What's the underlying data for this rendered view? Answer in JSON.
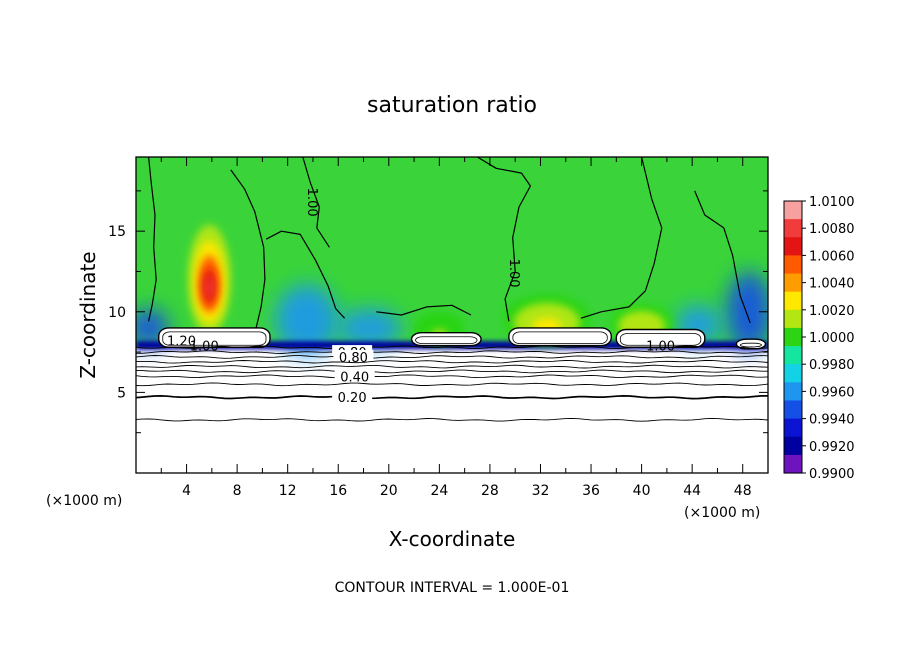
{
  "chart_data": {
    "type": "heatmap",
    "title": "saturation ratio",
    "xlabel": "X-coordinate",
    "ylabel": "Z-coordinate",
    "x_unit_left": "(×1000 m)",
    "x_unit_right": "(×1000 m)",
    "xlim": [
      0,
      50
    ],
    "ylim": [
      0,
      19.6
    ],
    "x_ticks": [
      4,
      8,
      12,
      16,
      20,
      24,
      28,
      32,
      36,
      40,
      44,
      48
    ],
    "x_tick_labels": [
      "4",
      "8",
      "12",
      "16",
      "20",
      "24",
      "28",
      "32",
      "36",
      "40",
      "44",
      "48"
    ],
    "y_ticks": [
      5,
      10,
      15
    ],
    "y_tick_labels": [
      "5",
      "10",
      "15"
    ],
    "footer": "CONTOUR INTERVAL = 1.000E-01",
    "colorbar": {
      "labels": [
        "1.0100",
        "1.0080",
        "1.0060",
        "1.0040",
        "1.0020",
        "1.0000",
        "0.9980",
        "0.9960",
        "0.9940",
        "0.9920",
        "0.9900"
      ],
      "colors": [
        "#f7a0a0",
        "#f23c3c",
        "#e41414",
        "#ff5a00",
        "#ff9c00",
        "#ffe800",
        "#b4e614",
        "#2cd414",
        "#14e6a0",
        "#14d2e6",
        "#1e96f0",
        "#1450e6",
        "#0a14d2",
        "#0000a0",
        "#6e14be"
      ],
      "min": 0.99,
      "max": 1.01
    },
    "background_color": "#3ad43a",
    "hot_spots": [
      {
        "x": 5.8,
        "z": 12.0,
        "sx": 1.7,
        "sz": 3.4,
        "value": 1.009
      },
      {
        "x": 32.5,
        "z": 9.5,
        "sx": 3.5,
        "sz": 1.6,
        "value": 1.003
      },
      {
        "x": 40.0,
        "z": 9.3,
        "sx": 2.5,
        "sz": 1.2,
        "value": 1.002
      },
      {
        "x": 24.0,
        "z": 9.0,
        "sx": 2.0,
        "sz": 1.0,
        "value": 1.001
      }
    ],
    "cold_spots": [
      {
        "x": 13.5,
        "z": 9.5,
        "sx": 2.5,
        "sz": 2.2,
        "value": 0.9955
      },
      {
        "x": 18.5,
        "z": 9.0,
        "sx": 2.5,
        "sz": 1.2,
        "value": 0.9965
      },
      {
        "x": 1.0,
        "z": 9.0,
        "sx": 1.6,
        "sz": 1.2,
        "value": 0.995
      },
      {
        "x": 48.5,
        "z": 10.0,
        "sx": 1.8,
        "sz": 2.5,
        "value": 0.995
      },
      {
        "x": 44.5,
        "z": 9.2,
        "sx": 1.8,
        "sz": 1.2,
        "value": 0.996
      }
    ],
    "blue_band": {
      "z": 7.8,
      "value": 0.9925
    },
    "cloud_caps": [
      {
        "x0": 1.8,
        "x1": 10.6,
        "z0": 7.8,
        "z1": 9.0,
        "label": "1.20",
        "label_x": 3.6,
        "label_z": 7.9
      },
      {
        "x0": 21.8,
        "x1": 27.3,
        "z0": 7.9,
        "z1": 8.7,
        "label": "",
        "label_x": 0,
        "label_z": 0
      },
      {
        "x0": 29.5,
        "x1": 37.6,
        "z0": 7.9,
        "z1": 9.0,
        "label": "",
        "label_x": 0,
        "label_z": 0
      },
      {
        "x0": 38.0,
        "x1": 45.0,
        "z0": 7.8,
        "z1": 8.9,
        "label": "",
        "label_x": 0,
        "label_z": 0
      },
      {
        "x0": 47.5,
        "x1": 49.8,
        "z0": 7.7,
        "z1": 8.3,
        "label": "",
        "label_x": 0,
        "label_z": 0
      }
    ],
    "contours": [
      {
        "z": 7.8,
        "label": "",
        "label_x": 0
      },
      {
        "z": 7.5,
        "label": "0.80",
        "label_x": 17.1
      },
      {
        "z": 7.2,
        "label": "0.80",
        "label_x": 17.2
      },
      {
        "z": 6.9,
        "label": "",
        "label_x": 0
      },
      {
        "z": 6.6,
        "label": "",
        "label_x": 0
      },
      {
        "z": 6.3,
        "label": "",
        "label_x": 0
      },
      {
        "z": 6.0,
        "label": "0.40",
        "label_x": 17.3
      },
      {
        "z": 5.5,
        "label": "",
        "label_x": 0
      },
      {
        "z": 4.7,
        "label": "0.20",
        "label_x": 17.1
      },
      {
        "z": 3.3,
        "label": "",
        "label_x": 0
      }
    ],
    "surface_contour_labels": [
      {
        "label": "1.00",
        "x": 5.4,
        "z": 7.6
      },
      {
        "label": "1.00",
        "x": 41.5,
        "z": 7.6
      },
      {
        "label": "1.00",
        "x": 29.6,
        "z": 12.4,
        "rotate": 90
      },
      {
        "label": "1.00",
        "x": 13.6,
        "z": 16.8,
        "rotate": 90
      }
    ],
    "one_contours": [
      [
        [
          1.0,
          19.6
        ],
        [
          1.2,
          18.0
        ],
        [
          1.5,
          16.0
        ],
        [
          1.4,
          14.0
        ],
        [
          1.6,
          12.0
        ],
        [
          1.3,
          10.5
        ],
        [
          1.0,
          9.4
        ]
      ],
      [
        [
          7.5,
          18.8
        ],
        [
          8.6,
          17.6
        ],
        [
          9.4,
          16.2
        ],
        [
          10.1,
          14.0
        ],
        [
          10.2,
          12.0
        ],
        [
          9.9,
          10.3
        ],
        [
          9.5,
          9.0
        ]
      ],
      [
        [
          10.3,
          14.5
        ],
        [
          11.5,
          15.0
        ],
        [
          13.0,
          14.8
        ],
        [
          14.2,
          13.2
        ],
        [
          15.2,
          11.6
        ],
        [
          15.8,
          10.2
        ],
        [
          16.5,
          9.6
        ]
      ],
      [
        [
          13.2,
          19.6
        ],
        [
          13.8,
          18.0
        ],
        [
          14.5,
          16.5
        ],
        [
          14.3,
          15.2
        ],
        [
          15.3,
          14.0
        ]
      ],
      [
        [
          19.0,
          10.0
        ],
        [
          21.0,
          9.8
        ],
        [
          23.0,
          10.3
        ],
        [
          25.0,
          10.4
        ],
        [
          26.5,
          9.8
        ]
      ],
      [
        [
          27.0,
          19.6
        ],
        [
          28.5,
          18.9
        ],
        [
          30.5,
          18.6
        ],
        [
          31.2,
          17.8
        ],
        [
          30.3,
          16.5
        ],
        [
          29.8,
          14.6
        ],
        [
          30.0,
          12.5
        ],
        [
          29.2,
          10.8
        ],
        [
          29.5,
          9.4
        ]
      ],
      [
        [
          40.0,
          19.6
        ],
        [
          40.8,
          17.0
        ],
        [
          41.6,
          15.2
        ],
        [
          41.0,
          13.0
        ],
        [
          40.3,
          11.3
        ],
        [
          39.0,
          10.3
        ],
        [
          36.8,
          10.0
        ],
        [
          35.2,
          9.6
        ]
      ],
      [
        [
          44.2,
          17.5
        ],
        [
          45.0,
          16.0
        ],
        [
          46.5,
          15.2
        ],
        [
          47.2,
          13.5
        ],
        [
          47.8,
          11.0
        ],
        [
          48.6,
          9.3
        ]
      ]
    ]
  }
}
